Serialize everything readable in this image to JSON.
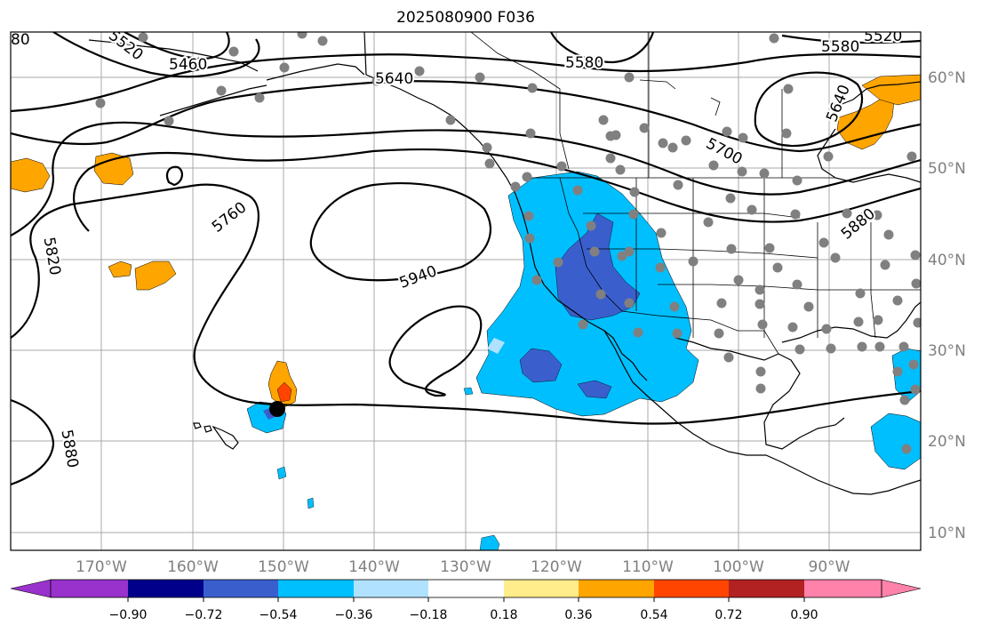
{
  "title": "2025080900 F036",
  "map": {
    "lat_labels": [
      "60°N",
      "50°N",
      "40°N",
      "30°N",
      "20°N",
      "10°N"
    ],
    "lon_labels": [
      "170°W",
      "160°W",
      "150°W",
      "140°W",
      "130°W",
      "120°W",
      "110°W",
      "100°W",
      "90°W"
    ],
    "contour_labels": [
      "5460",
      "5520",
      "5520",
      "5580",
      "5580",
      "5640",
      "5640",
      "5700",
      "5760",
      "5820",
      "5880",
      "5880",
      "5940",
      "80"
    ],
    "contour_levels": [
      5460,
      5520,
      5580,
      5640,
      5700,
      5760,
      5820,
      5880,
      5940
    ],
    "grid_color": "#a9a9a9",
    "station_color": "#808080",
    "target_marker": "black-dot"
  },
  "colorbar": {
    "tick_labels": [
      "−0.90",
      "−0.72",
      "−0.54",
      "−0.36",
      "−0.18",
      "0.18",
      "0.36",
      "0.54",
      "0.72",
      "0.90"
    ],
    "colors": [
      "#9932cc",
      "#00008b",
      "#3a5fcd",
      "#00bfff",
      "#b0e2ff",
      "#ffffff",
      "#ffec8b",
      "#ffa500",
      "#ff4500",
      "#b22222",
      "#ff82ab"
    ]
  }
}
